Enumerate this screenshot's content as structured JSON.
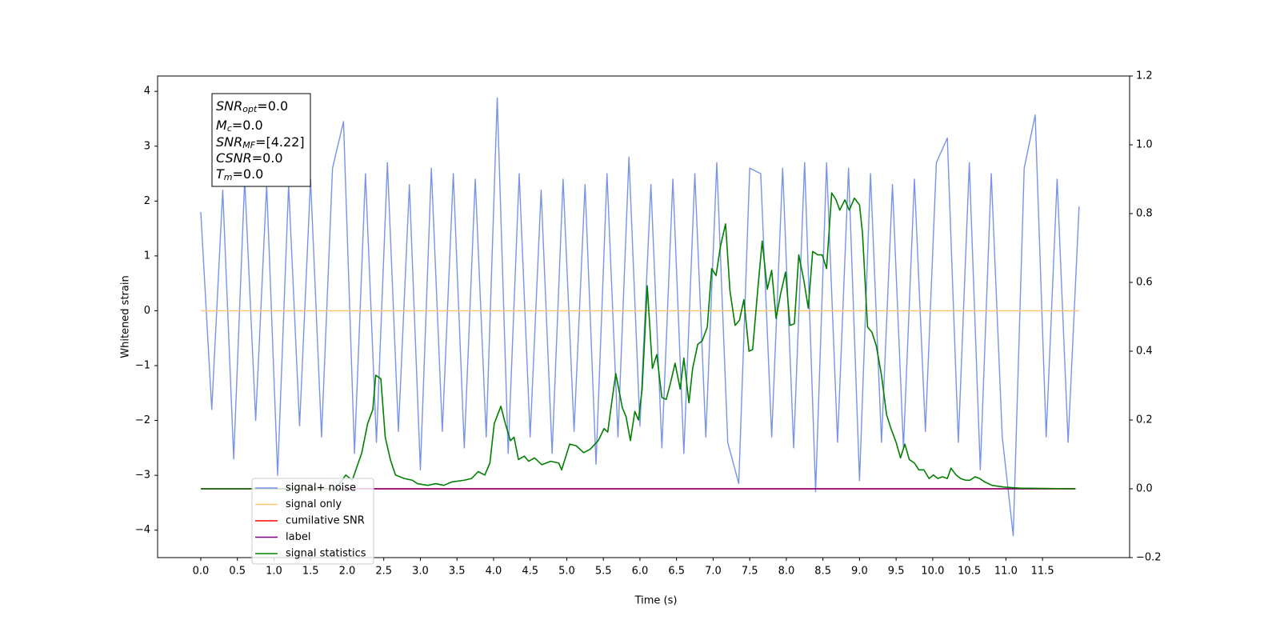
{
  "chart_data": {
    "type": "line",
    "xlabel": "Time (s)",
    "ylabel": "Whitened strain",
    "xlim": [
      -0.59,
      12.69
    ],
    "ylim": [
      -4.5,
      4.28
    ],
    "y2lim": [
      -0.2,
      1.2
    ],
    "xticks": [
      {
        "value": 0,
        "label": "0.0"
      },
      {
        "value": 0.5,
        "label": "0.5"
      },
      {
        "value": 1,
        "label": "1.0"
      },
      {
        "value": 1.5,
        "label": "1.5"
      },
      {
        "value": 2,
        "label": "2.0"
      },
      {
        "value": 2.5,
        "label": "2.5"
      },
      {
        "value": 3,
        "label": "3.0"
      },
      {
        "value": 3.5,
        "label": "3.5"
      },
      {
        "value": 4,
        "label": "4.0"
      },
      {
        "value": 4.5,
        "label": "4.5"
      },
      {
        "value": 5,
        "label": "5.0"
      },
      {
        "value": 5.5,
        "label": "5.5"
      },
      {
        "value": 6,
        "label": "6.0"
      },
      {
        "value": 6.5,
        "label": "6.5"
      },
      {
        "value": 7,
        "label": "7.0"
      },
      {
        "value": 7.5,
        "label": "7.5"
      },
      {
        "value": 8,
        "label": "8.0"
      },
      {
        "value": 8.5,
        "label": "8.5"
      },
      {
        "value": 9,
        "label": "9.0"
      },
      {
        "value": 9.5,
        "label": "9.5"
      },
      {
        "value": 10,
        "label": "10.0"
      },
      {
        "value": 10.5,
        "label": "10.5"
      },
      {
        "value": 11,
        "label": "11.0"
      },
      {
        "value": 11.5,
        "label": "11.5"
      }
    ],
    "yticks": [
      {
        "value": -4,
        "label": "−4"
      },
      {
        "value": -3,
        "label": "−3"
      },
      {
        "value": -2,
        "label": "−2"
      },
      {
        "value": -1,
        "label": "−1"
      },
      0,
      1,
      2,
      3,
      4
    ],
    "y2ticks": [
      {
        "value": -0.2,
        "label": "−0.2"
      },
      {
        "value": 0,
        "label": "0.0"
      },
      0.2,
      0.4,
      0.6,
      0.8,
      {
        "value": 1,
        "label": "1.0"
      },
      1.2
    ],
    "grid": false,
    "annotations": [
      {
        "main": "SNR",
        "sub": "opt",
        "rest": "=0.0"
      },
      {
        "main": "M",
        "sub": "c",
        "rest": "=0.0"
      },
      {
        "main": "SNR",
        "sub": "MF",
        "rest": "=[4.22]"
      },
      {
        "main": "CSNR",
        "rest": "=0.0"
      },
      {
        "main": "T",
        "sub": "m",
        "rest": "=0.0"
      }
    ],
    "series": [
      {
        "name": "signal+ noise",
        "color": "#7893e8",
        "x": [
          0,
          0.15,
          0.3,
          0.45,
          0.6,
          0.75,
          0.9,
          1.05,
          1.2,
          1.35,
          1.5,
          1.65,
          1.8,
          1.95,
          2.1,
          2.25,
          2.4,
          2.55,
          2.7,
          2.85,
          3,
          3.15,
          3.3,
          3.45,
          3.6,
          3.75,
          3.9,
          4.05,
          4.2,
          4.35,
          4.5,
          4.65,
          4.8,
          4.95,
          5.1,
          5.25,
          5.4,
          5.55,
          5.7,
          5.85,
          6,
          6.15,
          6.3,
          6.45,
          6.6,
          6.75,
          6.9,
          7.05,
          7.2,
          7.35,
          7.5,
          7.65,
          7.8,
          7.95,
          8.1,
          8.25,
          8.4,
          8.55,
          8.7,
          8.85,
          9,
          9.15,
          9.3,
          9.45,
          9.6,
          9.75,
          9.9,
          10.05,
          10.2,
          10.35,
          10.5,
          10.65,
          10.8,
          10.95,
          11.1,
          11.25,
          11.4,
          11.55,
          11.7,
          11.85,
          12
        ],
        "values": [
          1.8,
          -1.8,
          2.2,
          -2.7,
          2.4,
          -2.0,
          2.3,
          -3.0,
          2.3,
          -2.1,
          2.4,
          -2.3,
          2.6,
          3.45,
          -2.6,
          2.5,
          -2.4,
          2.7,
          -2.2,
          2.3,
          -2.9,
          2.6,
          -2.2,
          2.5,
          -2.5,
          2.4,
          -2.3,
          3.88,
          -2.6,
          2.5,
          -2.3,
          2.2,
          -2.6,
          2.4,
          -2.2,
          2.3,
          -2.8,
          2.5,
          -2.3,
          2.8,
          -2.1,
          2.3,
          -2.5,
          2.4,
          -2.6,
          2.5,
          -2.3,
          2.7,
          -2.4,
          -3.15,
          2.6,
          2.5,
          -2.3,
          2.6,
          -2.5,
          2.7,
          -3.3,
          2.7,
          -2.4,
          2.6,
          -3.1,
          2.5,
          -2.4,
          2.3,
          -2.5,
          2.4,
          -2.2,
          2.7,
          3.15,
          -2.4,
          2.7,
          -2.9,
          2.5,
          -2.3,
          -4.1,
          2.6,
          3.57,
          -2.3,
          2.4,
          -2.4,
          1.9
        ]
      },
      {
        "name": "signal only",
        "color": "#ffc36e",
        "x": [
          0,
          12
        ],
        "values": [
          0,
          0
        ]
      },
      {
        "name": "cumilative SNR",
        "color": "#ff0000",
        "axis": "y2",
        "x": [
          0,
          11.95
        ],
        "values": [
          0,
          0
        ]
      },
      {
        "name": "label",
        "color": "#800080",
        "axis": "y2",
        "x": [
          0,
          11.95
        ],
        "values": [
          0,
          0
        ]
      },
      {
        "name": "signal statistics",
        "color": "#008000",
        "axis": "y2",
        "x": [
          0,
          1.85,
          1.98,
          2.07,
          2.2,
          2.28,
          2.35,
          2.39,
          2.46,
          2.52,
          2.59,
          2.66,
          2.78,
          2.89,
          2.96,
          3.1,
          3.21,
          3.32,
          3.43,
          3.6,
          3.7,
          3.79,
          3.88,
          3.95,
          4.01,
          4.1,
          4.16,
          4.23,
          4.28,
          4.34,
          4.42,
          4.48,
          4.56,
          4.66,
          4.78,
          4.89,
          4.93,
          5.04,
          5.13,
          5.23,
          5.32,
          5.43,
          5.51,
          5.56,
          5.62,
          5.67,
          5.76,
          5.81,
          5.87,
          5.93,
          5.98,
          6.03,
          6.1,
          6.17,
          6.23,
          6.3,
          6.36,
          6.42,
          6.48,
          6.55,
          6.6,
          6.67,
          6.72,
          6.79,
          6.85,
          6.92,
          6.98,
          7.04,
          7.1,
          7.17,
          7.23,
          7.3,
          7.36,
          7.42,
          7.49,
          7.54,
          7.61,
          7.67,
          7.74,
          7.8,
          7.86,
          7.92,
          7.99,
          8.05,
          8.11,
          8.17,
          8.24,
          8.3,
          8.36,
          8.43,
          8.49,
          8.55,
          8.62,
          8.68,
          8.73,
          8.8,
          8.86,
          8.93,
          9.0,
          9.04,
          9.11,
          9.17,
          9.23,
          9.3,
          9.37,
          9.43,
          9.5,
          9.56,
          9.62,
          9.68,
          9.75,
          9.81,
          9.88,
          9.95,
          10.01,
          10.07,
          10.13,
          10.2,
          10.25,
          10.32,
          10.38,
          10.45,
          10.51,
          10.58,
          10.64,
          10.71,
          10.81,
          10.97,
          11.19,
          11.95
        ],
        "values": [
          0,
          0,
          0.04,
          0.025,
          0.105,
          0.19,
          0.23,
          0.33,
          0.32,
          0.15,
          0.085,
          0.04,
          0.03,
          0.025,
          0.015,
          0.01,
          0.015,
          0.01,
          0.02,
          0.025,
          0.03,
          0.05,
          0.04,
          0.075,
          0.19,
          0.24,
          0.19,
          0.14,
          0.15,
          0.085,
          0.095,
          0.08,
          0.09,
          0.07,
          0.08,
          0.075,
          0.055,
          0.13,
          0.125,
          0.105,
          0.115,
          0.14,
          0.175,
          0.165,
          0.26,
          0.335,
          0.235,
          0.21,
          0.14,
          0.225,
          0.2,
          0.29,
          0.59,
          0.35,
          0.39,
          0.265,
          0.26,
          0.31,
          0.365,
          0.29,
          0.38,
          0.25,
          0.35,
          0.42,
          0.43,
          0.47,
          0.64,
          0.62,
          0.705,
          0.77,
          0.575,
          0.475,
          0.49,
          0.55,
          0.4,
          0.405,
          0.58,
          0.72,
          0.58,
          0.635,
          0.495,
          0.565,
          0.63,
          0.475,
          0.48,
          0.68,
          0.605,
          0.525,
          0.69,
          0.68,
          0.68,
          0.64,
          0.86,
          0.84,
          0.81,
          0.84,
          0.81,
          0.845,
          0.825,
          0.745,
          0.47,
          0.455,
          0.415,
          0.33,
          0.215,
          0.175,
          0.135,
          0.09,
          0.13,
          0.085,
          0.075,
          0.055,
          0.055,
          0.03,
          0.04,
          0.03,
          0.035,
          0.03,
          0.06,
          0.04,
          0.03,
          0.025,
          0.025,
          0.035,
          0.03,
          0.02,
          0.01,
          0.005,
          0.002,
          0
        ]
      }
    ]
  }
}
